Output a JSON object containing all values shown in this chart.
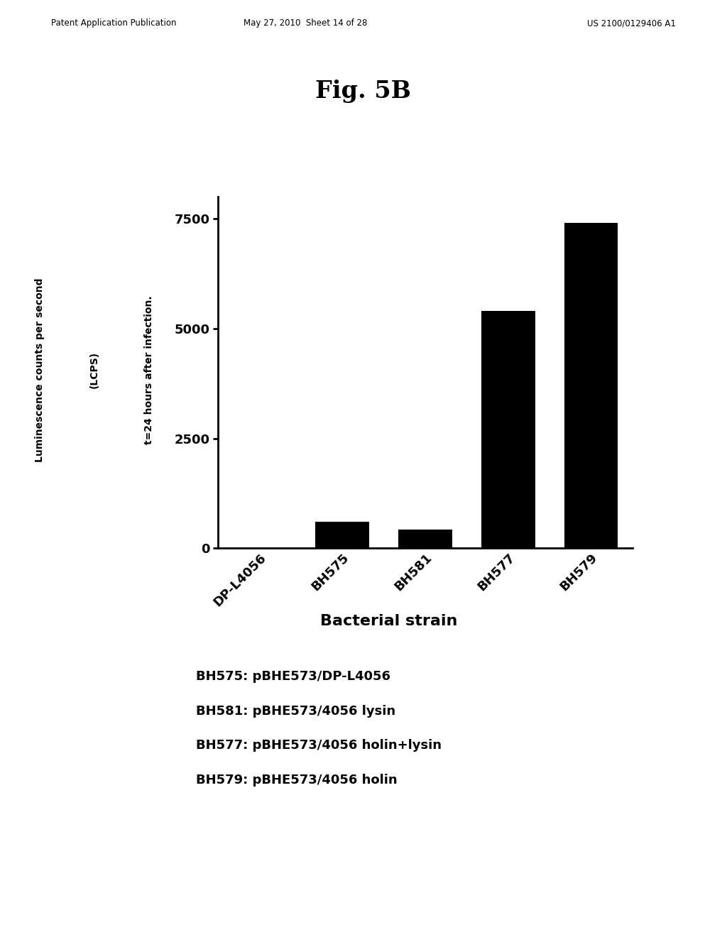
{
  "title": "Fig. 5B",
  "categories": [
    "DP-L4056",
    "BH575",
    "BH581",
    "BH577",
    "BH579"
  ],
  "values": [
    0,
    600,
    420,
    5400,
    7400
  ],
  "bar_color": "#000000",
  "ylabel_line1": "Luminescence counts per second",
  "ylabel_line2": "(LCPS)",
  "ylabel_line3": "t=24 hours after infection.",
  "xlabel": "Bacterial strain",
  "ylim": [
    0,
    8000
  ],
  "yticks": [
    0,
    2500,
    5000,
    7500
  ],
  "background_color": "#ffffff",
  "header_left": "Patent Application Publication",
  "header_mid": "May 27, 2010  Sheet 14 of 28",
  "header_right": "US 2100/0129406 A1",
  "legend_lines": [
    "BH575: pBHE573/DP-L4056",
    "BH581: pBHE573/4056 lysin",
    "BH577: pBHE573/4056 holin+lysin",
    "BH579: pBHE573/4056 holin"
  ]
}
